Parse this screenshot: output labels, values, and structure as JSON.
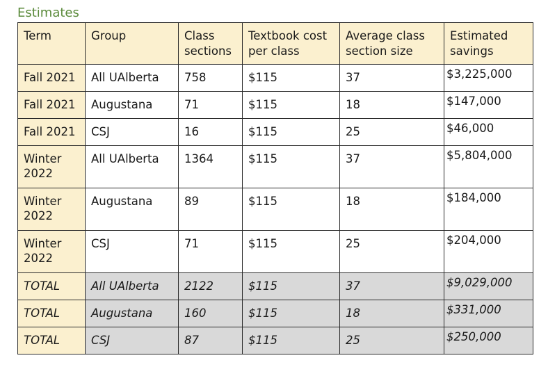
{
  "heading": "Estimates",
  "table": {
    "headers": [
      "Term",
      "Group",
      "Class sections",
      "Textbook cost per class",
      "Average class section size",
      "Estimated savings"
    ],
    "rows": [
      [
        "Fall 2021",
        "All UAlberta",
        "758",
        "$115",
        "37",
        "$3,225,000"
      ],
      [
        "Fall 2021",
        "Augustana",
        "71",
        "$115",
        "18",
        "$147,000"
      ],
      [
        "Fall 2021",
        "CSJ",
        "16",
        "$115",
        "25",
        "$46,000"
      ],
      [
        "Winter 2022",
        "All UAlberta",
        "1364",
        "$115",
        "37",
        "$5,804,000"
      ],
      [
        "Winter 2022",
        "Augustana",
        "89",
        "$115",
        "18",
        "$184,000"
      ],
      [
        "Winter 2022",
        "CSJ",
        "71",
        "$115",
        "25",
        "$204,000"
      ],
      [
        "TOTAL",
        "All UAlberta",
        "2122",
        "$115",
        "37",
        "$9,029,000"
      ],
      [
        "TOTAL",
        "Augustana",
        "160",
        "$115",
        "18",
        "$331,000"
      ],
      [
        "TOTAL",
        "CSJ",
        "87",
        "$115",
        "25",
        "$250,000"
      ]
    ]
  },
  "colors": {
    "heading": "#5a8a3a",
    "header_fill": "#fbf0cf",
    "total_fill": "#d9d9d9",
    "border": "#2a2a2a"
  }
}
